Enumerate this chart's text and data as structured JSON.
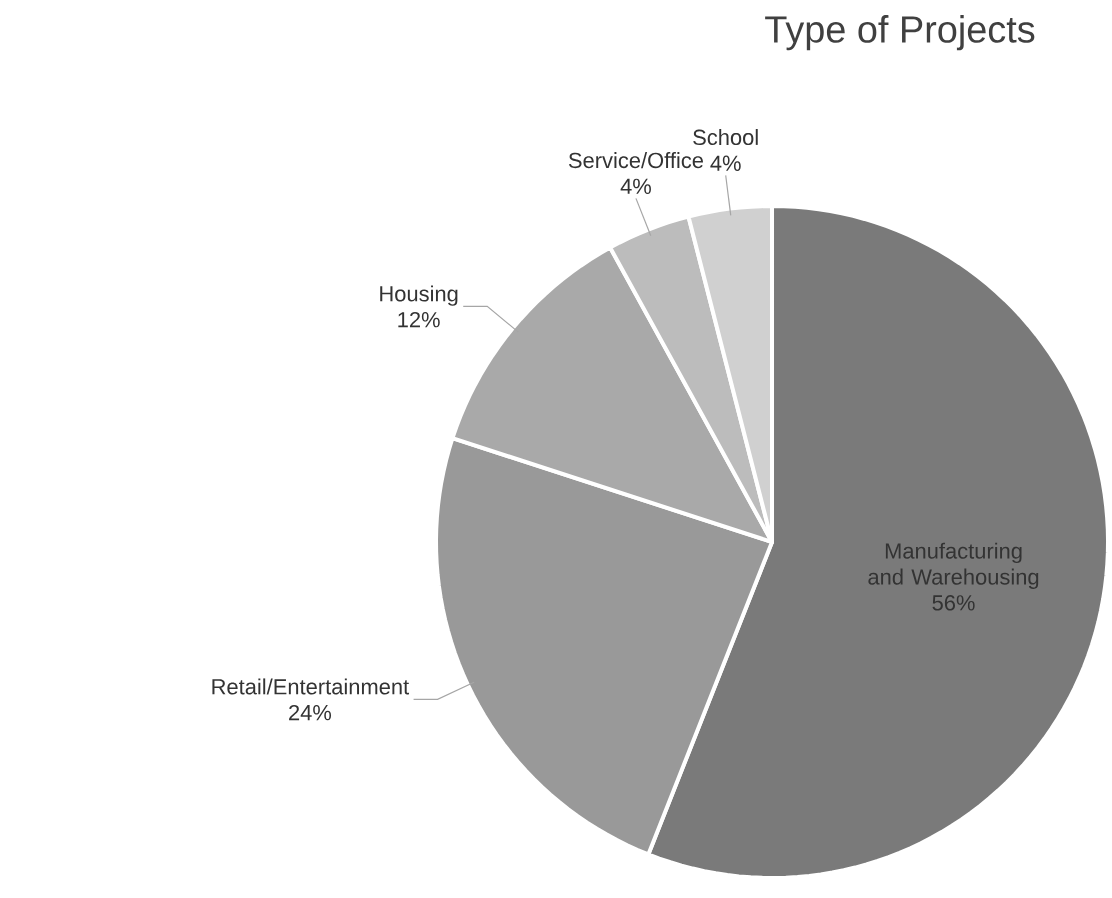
{
  "chart_data": {
    "type": "pie",
    "title": "Type of Projects",
    "categories": [
      "Manufacturing and Warehousing",
      "Retail/Entertainment",
      "Housing",
      "Service/Office",
      "School"
    ],
    "values": [
      56,
      24,
      12,
      4,
      4
    ],
    "value_labels": [
      "56%",
      "24%",
      "12%",
      "4%",
      "4%"
    ],
    "colors": [
      "#7a7a7a",
      "#999999",
      "#a9a9a9",
      "#bcbcbc",
      "#d0d0d0"
    ]
  }
}
